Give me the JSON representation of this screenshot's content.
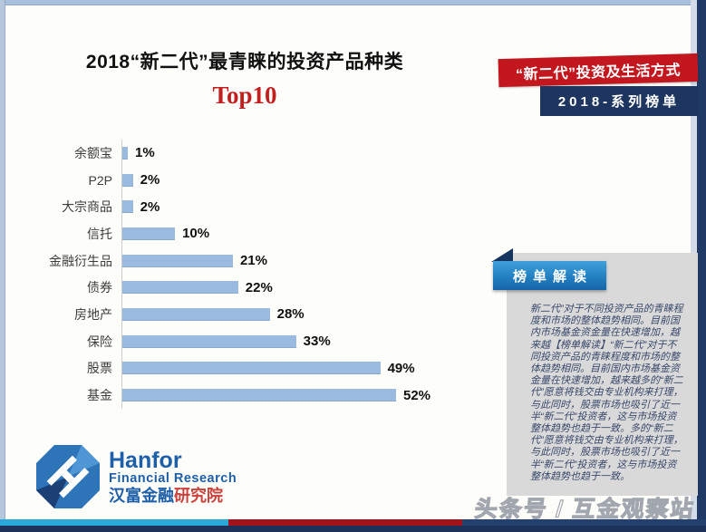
{
  "slide": {
    "title": "2018“新二代”最青睐的投资产品种类",
    "subtitle": "Top10"
  },
  "banners": {
    "red_label": "“新二代”投资及生活方式",
    "navy_label": "2018-系列榜单"
  },
  "insight": {
    "header": "榜单解读",
    "body": "新二代”对于不同投资产品的青睐程度和市场的整体趋势相同。目前国内市场基金资金量在快速增加，越来越【榜单解读】“新二代”对于不同投资产品的青睐程度和市场的整体趋势相同。目前国内市场基金资金量在快速增加，越来越多的“新二代”愿意将钱交由专业机构来打理，与此同时，股票市场也吸引了近一半“新二代”投资者，这与市场投资整体趋势也趋于一致。多的“新二代”愿意将钱交由专业机构来打理，与此同时，股票市场也吸引了近一半“新二代”投资者，这与市场投资整体趋势也趋于一致。"
  },
  "logo": {
    "name": "Hanfor",
    "subtitle": "Financial Research",
    "cn_blue": "汉富金融",
    "cn_red": "研究院"
  },
  "watermark": "头条号 / 互金观察站",
  "colors": {
    "bar": "#9bbadf",
    "banner_red": "#c2171e",
    "banner_navy": "#1e3560",
    "subtitle_red": "#c2201f",
    "ribbon_blue": "#2380c2",
    "panel_gray": "#d9d9d9",
    "stripe_cyan": "#2aa9d8",
    "stripe_red": "#a41319",
    "stripe_navy": "#24406e"
  },
  "chart_data": {
    "type": "bar",
    "orientation": "horizontal",
    "title": "2018“新二代”最青睐的投资产品种类 Top10",
    "categories": [
      "余额宝",
      "P2P",
      "大宗商品",
      "信托",
      "金融衍生品",
      "债券",
      "房地产",
      "保险",
      "股票",
      "基金"
    ],
    "values": [
      1,
      2,
      2,
      10,
      21,
      22,
      28,
      33,
      49,
      52
    ],
    "value_suffix": "%",
    "xlabel": "",
    "ylabel": "",
    "xlim": [
      0,
      60
    ],
    "grid": false,
    "legend": false
  }
}
